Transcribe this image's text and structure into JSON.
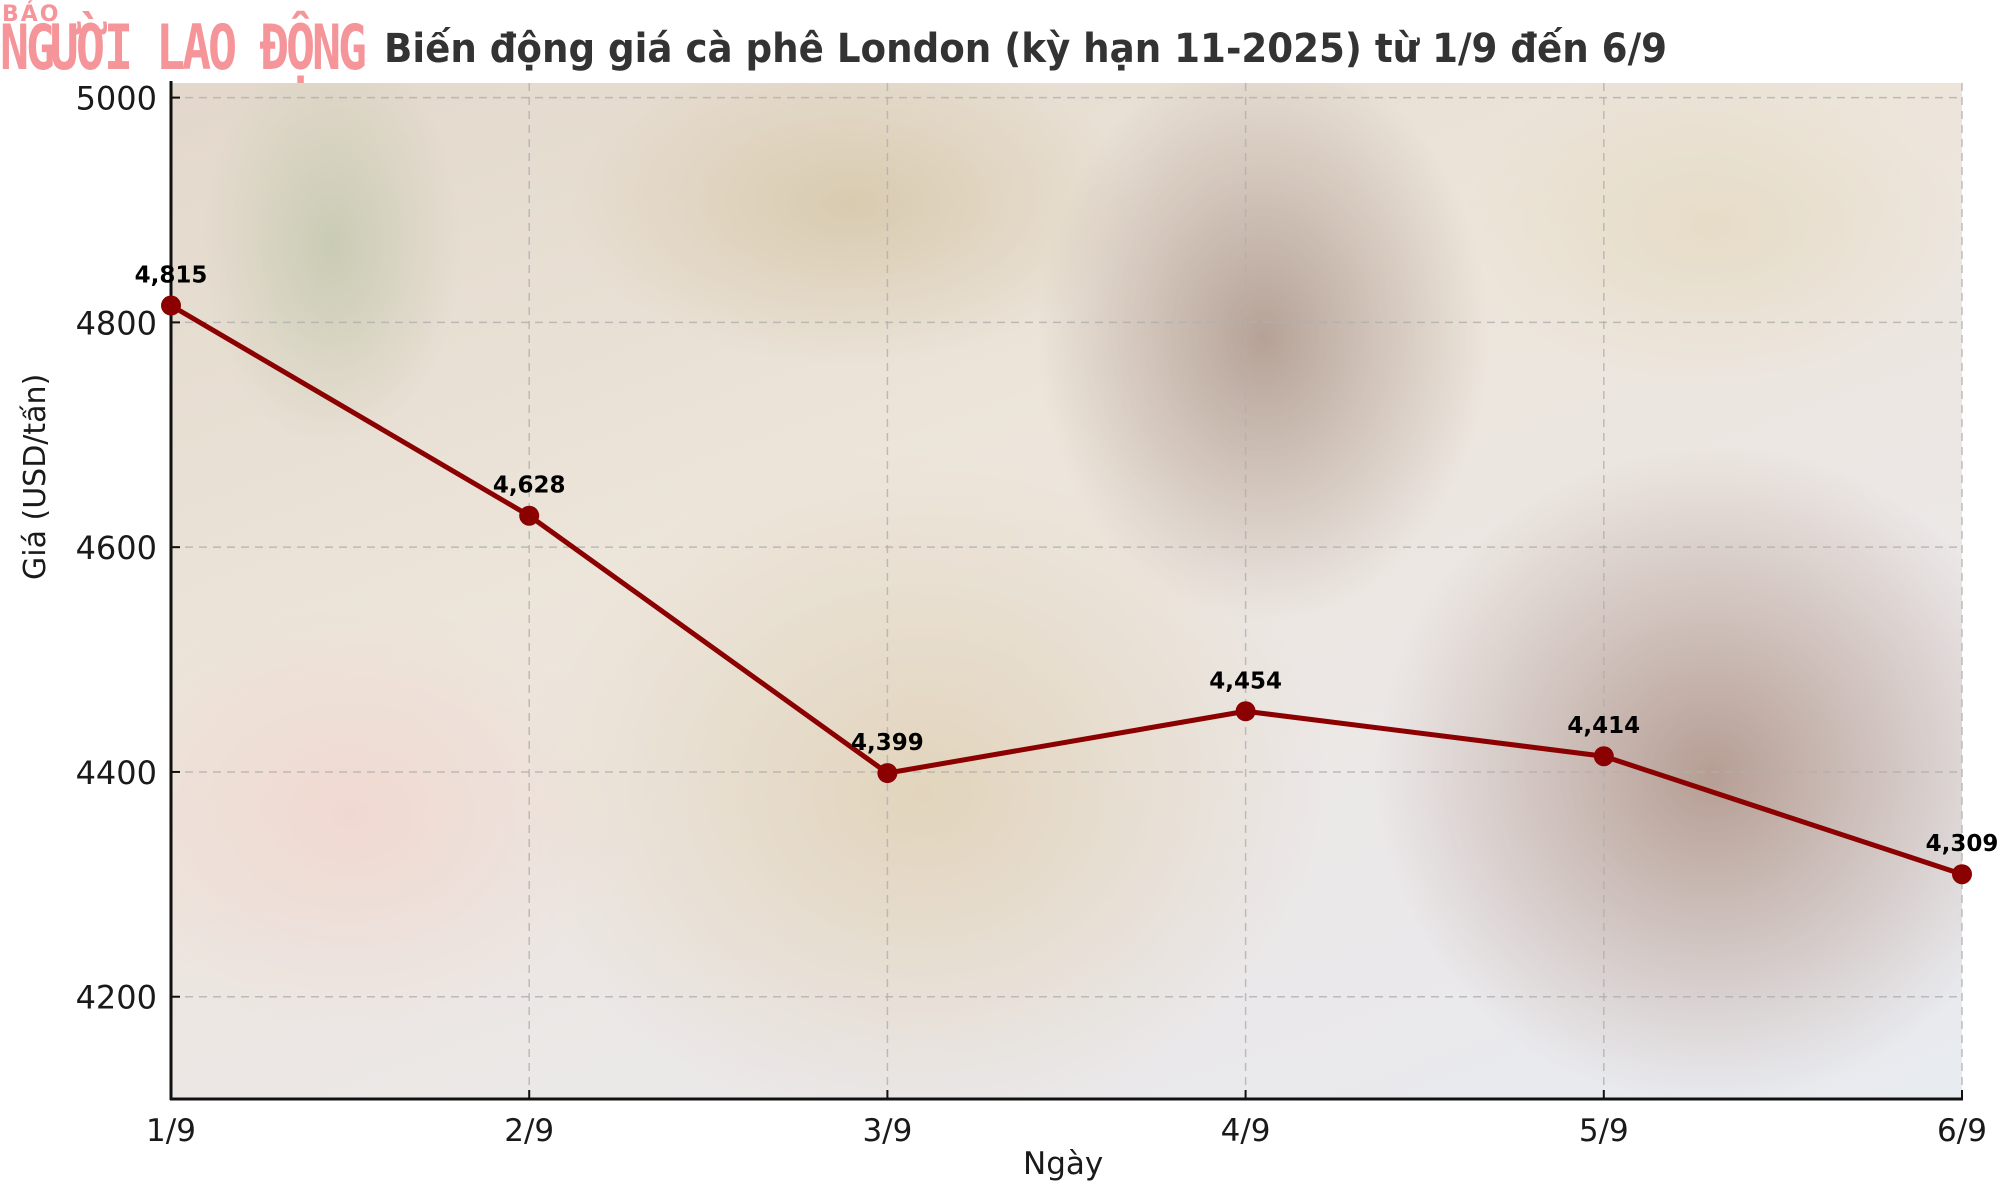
{
  "branding": {
    "small": "BÁO",
    "main": "NGƯỜI LAO ĐỘNG",
    "color": "#f5959a"
  },
  "chart_data": {
    "type": "line",
    "title": "Biến động giá cà phê London (kỳ hạn 11-2025) từ 1/9 đến 6/9",
    "xlabel": "Ngày",
    "ylabel": "Giá (USD/tấn)",
    "categories": [
      "1/9",
      "2/9",
      "3/9",
      "4/9",
      "5/9",
      "6/9"
    ],
    "series": [
      {
        "name": "Giá cà phê London (kỳ hạn 11-2025)",
        "values": [
          4815,
          4628,
          4399,
          4454,
          4414,
          4309
        ],
        "data_labels": [
          "4,815",
          "4,628",
          "4,399",
          "4,454",
          "4,414",
          "4,309"
        ],
        "color": "#8b0000",
        "marker": "circle"
      }
    ],
    "yticks": [
      4200,
      4400,
      4600,
      4800,
      5000
    ],
    "ylim": [
      4109,
      5013
    ],
    "grid": true,
    "grid_style": "dashed",
    "legend": null,
    "background": "faded coffee beans photograph"
  }
}
